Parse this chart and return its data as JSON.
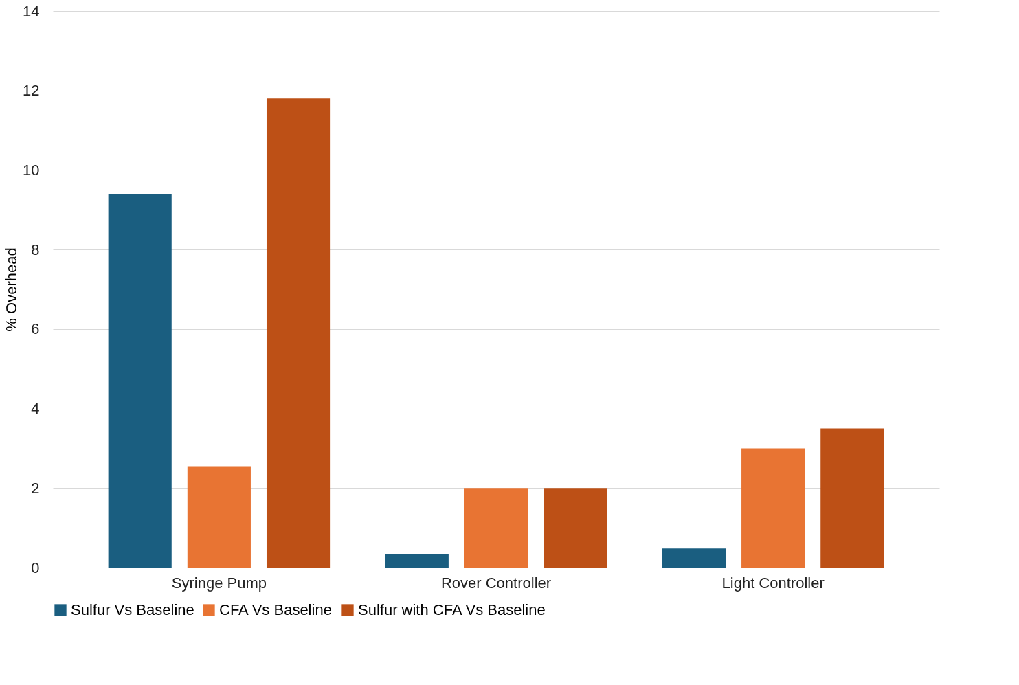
{
  "chart_data": {
    "type": "bar",
    "ylabel": "% Overhead",
    "categories": [
      "Syringe Pump",
      "Rover Controller",
      "Light Controller"
    ],
    "series": [
      {
        "name": "Sulfur Vs Baseline",
        "color": "#1a5e80",
        "values": [
          9.4,
          0.33,
          0.48
        ]
      },
      {
        "name": "CFA Vs Baseline",
        "color": "#e87433",
        "values": [
          2.55,
          2.0,
          3.0
        ]
      },
      {
        "name": "Sulfur with CFA Vs Baseline",
        "color": "#bd5016",
        "values": [
          11.8,
          2.0,
          3.5
        ]
      }
    ],
    "ylim": [
      0,
      14
    ],
    "yticks": [
      0,
      2,
      4,
      6,
      8,
      10,
      12,
      14
    ],
    "grid": "y",
    "legend": "bottom"
  }
}
